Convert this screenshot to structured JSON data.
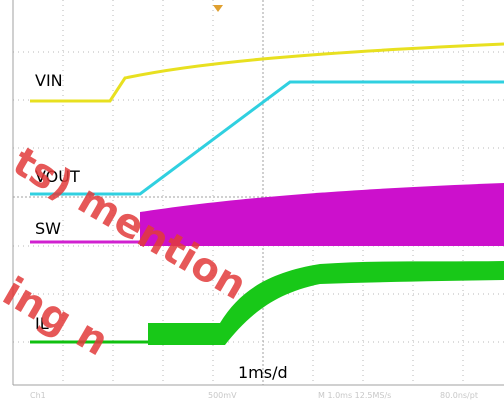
{
  "labels": {
    "vin": "VIN",
    "vout": "VOUT",
    "sw": "SW",
    "il": "IL"
  },
  "timebase": "1ms/d",
  "status": [
    "Ch1",
    "500mV",
    "M 1.0ms 12.5MS/s",
    "80.0ns/pt"
  ],
  "watermark": [
    "ts) mention",
    "ing n"
  ]
}
